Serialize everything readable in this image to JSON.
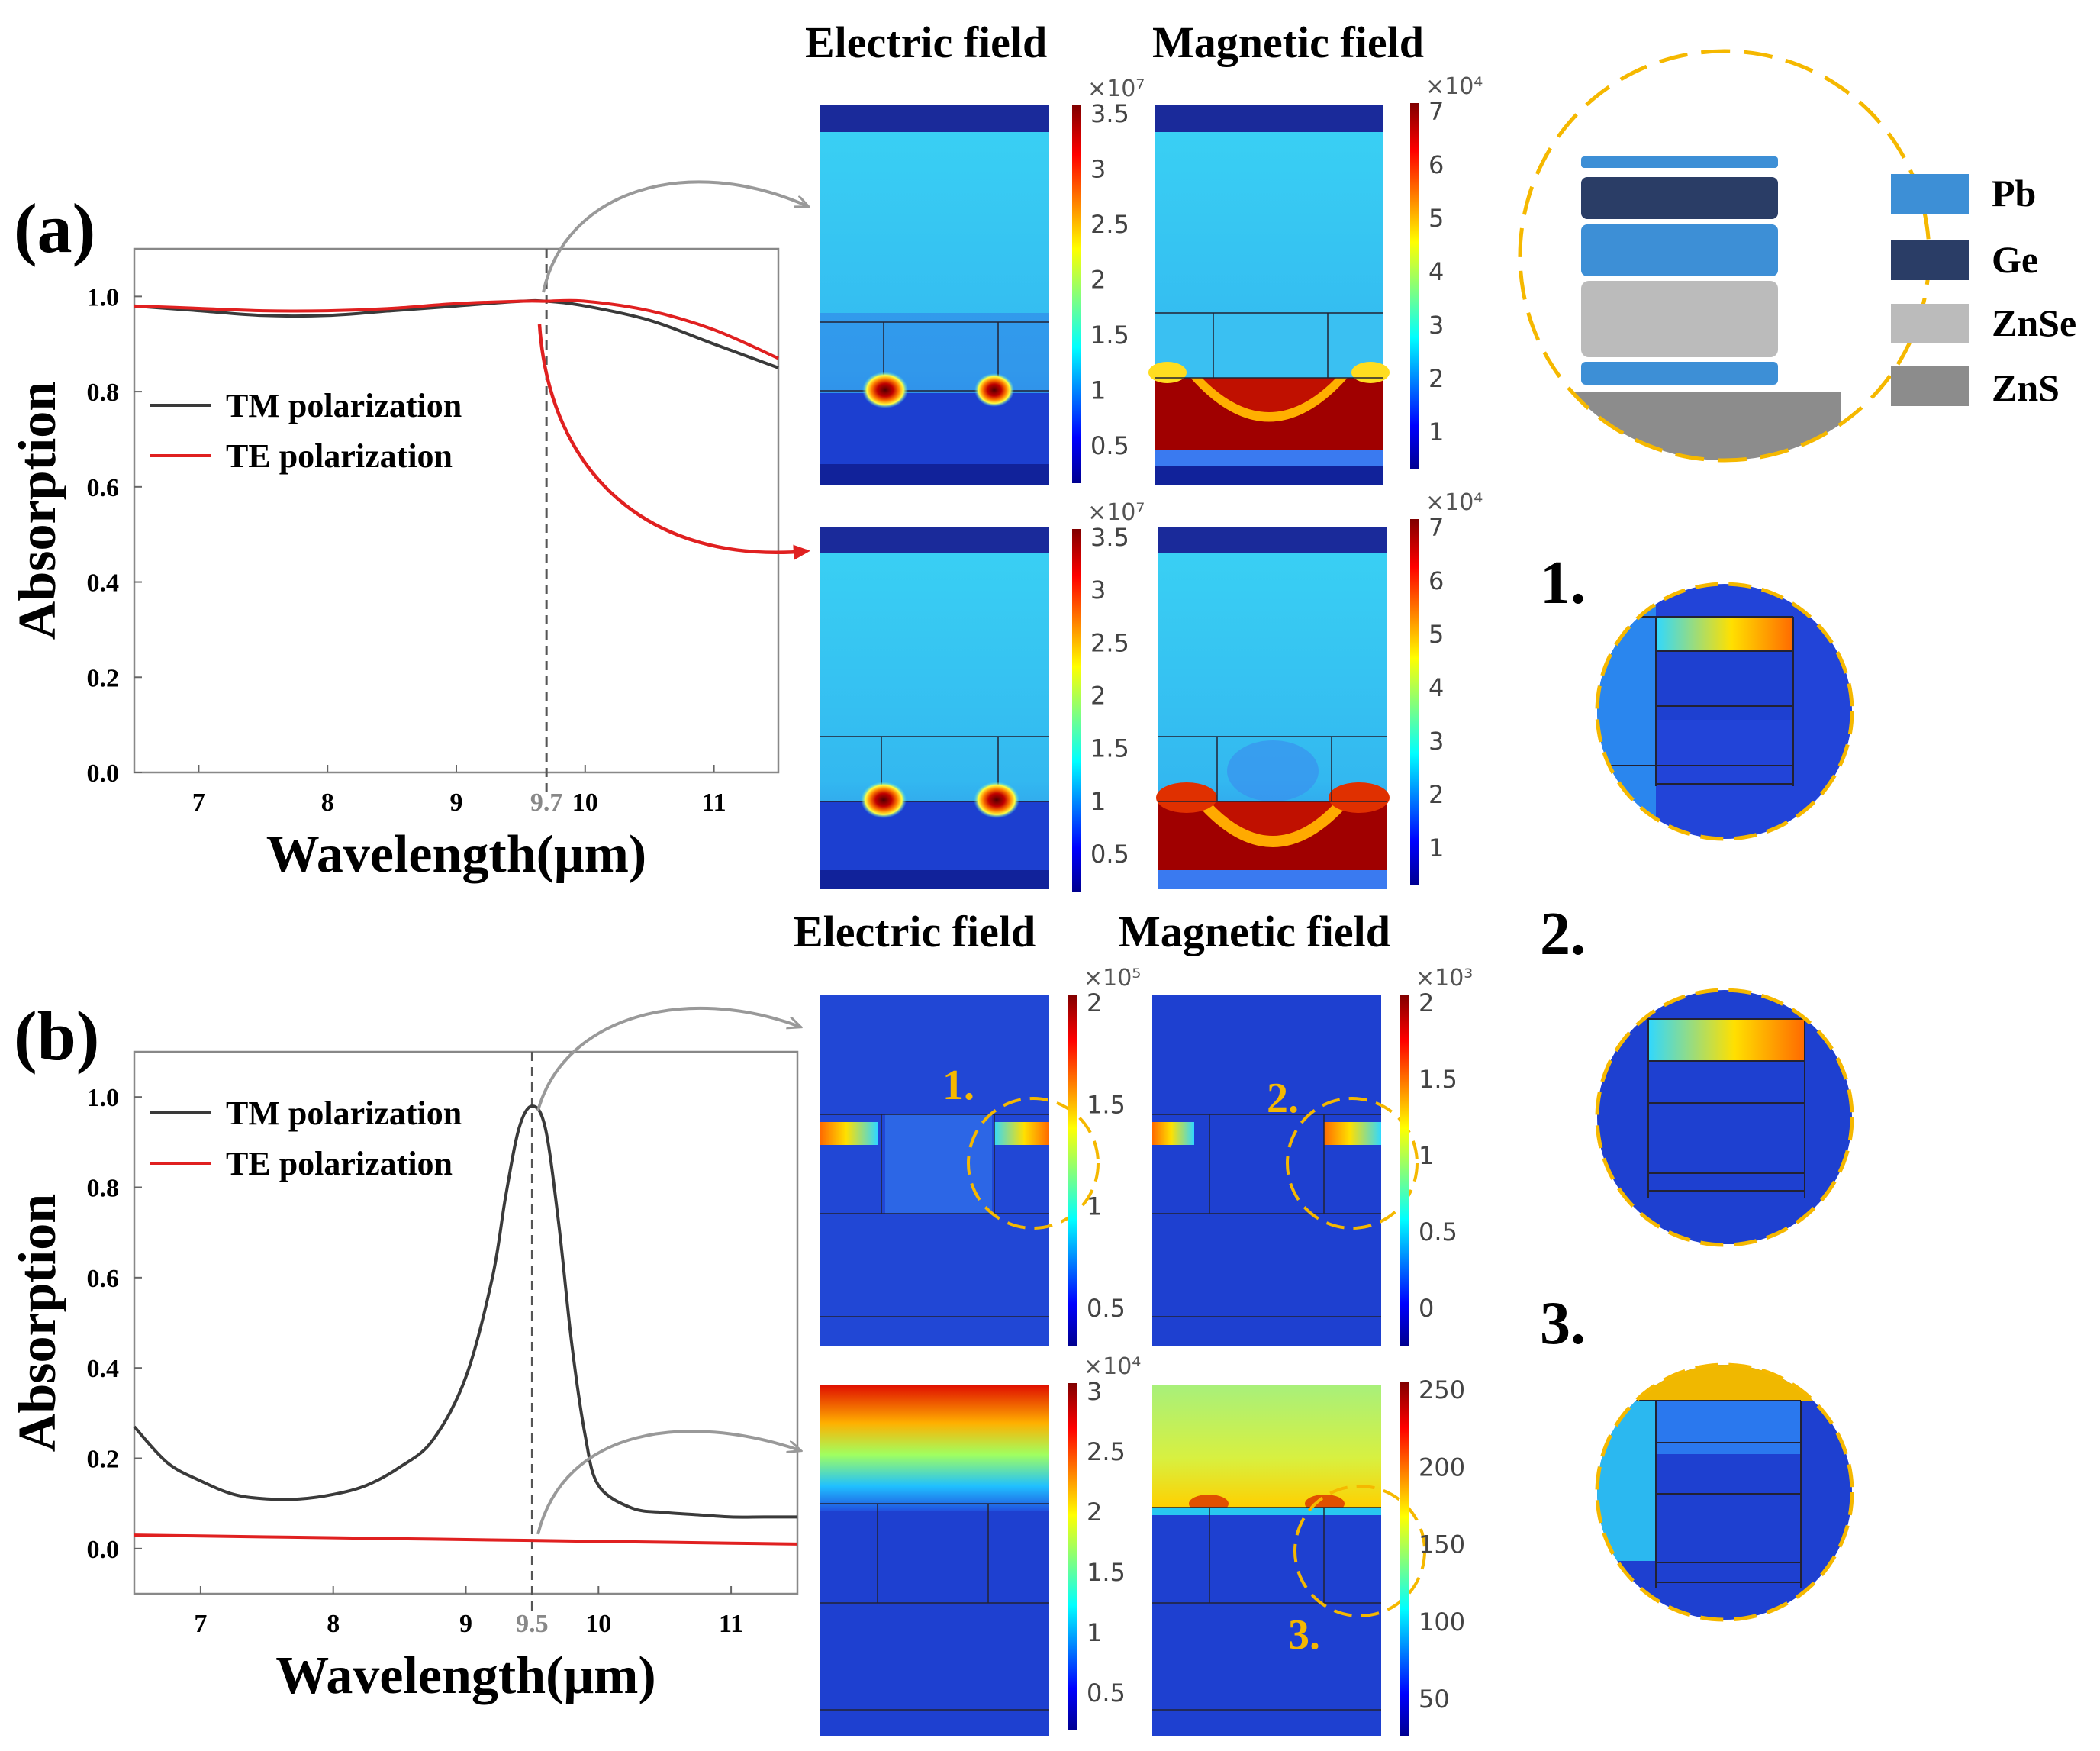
{
  "panel_a": {
    "label": "(a)",
    "field_headers": {
      "electric": "Electric field",
      "magnetic": "Magnetic field"
    }
  },
  "panel_b": {
    "label": "(b)",
    "field_headers": {
      "electric": "Electric field",
      "magnetic": "Magnetic field"
    }
  },
  "colors": {
    "tm": "#3a3a3a",
    "te": "#e02020",
    "callout": "#f5b800",
    "arrow_gray": "#999999"
  },
  "layers_legend": [
    {
      "name": "Pb",
      "color": "#3d8fd6"
    },
    {
      "name": "Ge",
      "color": "#2a3d66"
    },
    {
      "name": "ZnSe",
      "color": "#bbbbbb"
    },
    {
      "name": "ZnS",
      "color": "#8c8c8c"
    }
  ],
  "zoom_labels": [
    "1.",
    "2.",
    "3."
  ],
  "map_labels": {
    "b_e1": "1.",
    "b_h1": "2.",
    "b_h2": "3."
  },
  "colorbars": {
    "a_e": {
      "mult": "×10⁷",
      "ticks": [
        "3.5",
        "3",
        "2.5",
        "2",
        "1.5",
        "1",
        "0.5"
      ]
    },
    "a_h": {
      "mult": "×10⁴",
      "ticks": [
        "7",
        "6",
        "5",
        "4",
        "3",
        "2",
        "1"
      ]
    },
    "b_e1": {
      "mult": "×10⁵",
      "ticks": [
        "2",
        "1.5",
        "1",
        "0.5"
      ]
    },
    "b_h1": {
      "mult": "×10³",
      "ticks": [
        "2",
        "1.5",
        "1",
        "0.5",
        "0"
      ]
    },
    "b_e2": {
      "mult": "×10⁴",
      "ticks": [
        "3",
        "2.5",
        "2",
        "1.5",
        "1",
        "0.5"
      ]
    },
    "b_h2": {
      "mult": "",
      "ticks": [
        "250",
        "200",
        "150",
        "100",
        "50"
      ]
    }
  },
  "chart_data": [
    {
      "type": "line",
      "panel": "(a)",
      "xlabel": "Wavelength(μm)",
      "ylabel": "Absorption",
      "xlim": [
        6.5,
        11.5
      ],
      "ylim": [
        0.0,
        1.1
      ],
      "xticks": [
        "7",
        "8",
        "9",
        "10",
        "11"
      ],
      "yticks": [
        "0.0",
        "0.2",
        "0.4",
        "0.6",
        "0.8",
        "1.0"
      ],
      "marker": {
        "x": 9.7,
        "label": "9.7"
      },
      "legend_position": "center-left",
      "series": [
        {
          "name": "TM polarization",
          "x": [
            6.5,
            7,
            7.5,
            8,
            8.5,
            9,
            9.5,
            9.7,
            10,
            10.5,
            11,
            11.5
          ],
          "y": [
            0.98,
            0.97,
            0.96,
            0.96,
            0.97,
            0.98,
            0.99,
            0.99,
            0.98,
            0.95,
            0.9,
            0.85
          ]
        },
        {
          "name": "TE polarization",
          "x": [
            6.5,
            7,
            7.5,
            8,
            8.5,
            9,
            9.5,
            9.7,
            10,
            10.5,
            11,
            11.5
          ],
          "y": [
            0.98,
            0.975,
            0.97,
            0.97,
            0.975,
            0.985,
            0.99,
            0.99,
            0.99,
            0.97,
            0.93,
            0.87
          ]
        }
      ]
    },
    {
      "type": "line",
      "panel": "(b)",
      "xlabel": "Wavelength(μm)",
      "ylabel": "Absorption",
      "xlim": [
        6.5,
        11.5
      ],
      "ylim": [
        -0.1,
        1.1
      ],
      "xticks": [
        "7",
        "8",
        "9",
        "10",
        "11"
      ],
      "yticks": [
        "0.0",
        "0.2",
        "0.4",
        "0.6",
        "0.8",
        "1.0"
      ],
      "marker": {
        "x": 9.5,
        "label": "9.5"
      },
      "legend_position": "top-left",
      "series": [
        {
          "name": "TM polarization",
          "x": [
            6.5,
            6.75,
            7,
            7.25,
            7.5,
            7.75,
            8,
            8.25,
            8.5,
            8.75,
            9,
            9.2,
            9.3,
            9.4,
            9.5,
            9.6,
            9.7,
            9.8,
            9.9,
            10.0,
            10.25,
            10.5,
            10.75,
            11,
            11.25,
            11.5
          ],
          "y": [
            0.27,
            0.19,
            0.15,
            0.12,
            0.11,
            0.11,
            0.12,
            0.14,
            0.18,
            0.24,
            0.38,
            0.6,
            0.78,
            0.93,
            0.98,
            0.93,
            0.72,
            0.45,
            0.25,
            0.14,
            0.09,
            0.08,
            0.075,
            0.07,
            0.07,
            0.07
          ]
        },
        {
          "name": "TE polarization",
          "x": [
            6.5,
            7,
            7.5,
            8,
            8.5,
            9,
            9.5,
            10,
            10.5,
            11,
            11.5
          ],
          "y": [
            0.03,
            0.028,
            0.026,
            0.024,
            0.022,
            0.02,
            0.018,
            0.016,
            0.014,
            0.012,
            0.01
          ]
        }
      ]
    }
  ]
}
